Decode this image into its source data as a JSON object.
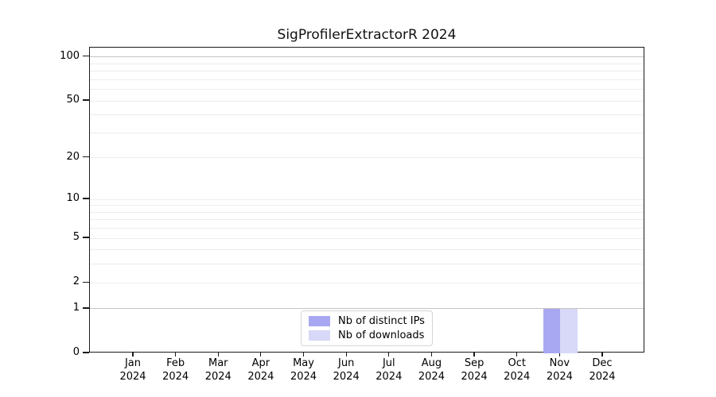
{
  "title": "SigProfilerExtractorR 2024",
  "chart_data": {
    "type": "bar",
    "title": "SigProfilerExtractorR 2024",
    "categories": [
      "Jan",
      "Feb",
      "Mar",
      "Apr",
      "May",
      "Jun",
      "Jul",
      "Aug",
      "Sep",
      "Oct",
      "Nov",
      "Dec"
    ],
    "x_year_label": "2024",
    "series": [
      {
        "name": "Nb of distinct IPs",
        "color": "#a8a8f2",
        "values": [
          0,
          0,
          0,
          0,
          0,
          0,
          0,
          0,
          0,
          0,
          1,
          0
        ]
      },
      {
        "name": "Nb of downloads",
        "color": "#d8d8f8",
        "values": [
          0,
          0,
          0,
          0,
          0,
          0,
          0,
          0,
          0,
          0,
          1,
          0
        ]
      }
    ],
    "yscale": "log1p",
    "ylim": [
      0,
      115.8
    ],
    "y_major_ticks": [
      0,
      1,
      2,
      5,
      10,
      20,
      50,
      100
    ],
    "y_minor_gridlines": [
      3,
      4,
      6,
      7,
      8,
      9,
      30,
      40,
      60,
      70,
      80,
      90
    ],
    "y_emphasized_gridlines": [
      1,
      100
    ],
    "grid": true,
    "legend_position": "lower center"
  },
  "colors": {
    "axis": "#1a1a1a",
    "grid_minor": "#ececec",
    "grid_major": "#ededed",
    "grid_emphasis": "#c4c4c4",
    "legend_border": "#d5d5d5",
    "background": "#ffffff"
  }
}
